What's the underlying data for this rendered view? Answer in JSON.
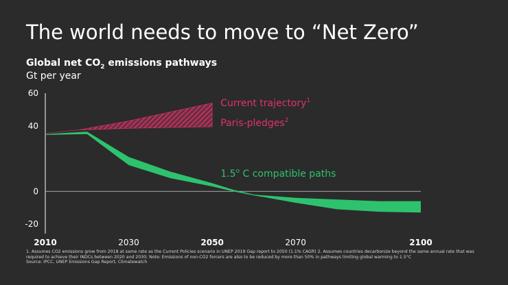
{
  "slide": {
    "title": "The world needs to move to “Net Zero”",
    "chart_title_pre": "Global net CO",
    "chart_title_sub": "2",
    "chart_title_post": " emissions pathways",
    "unit": "Gt per year"
  },
  "footnote": {
    "line1": "1. Assumes CO2 emissions grow from 2018 at same rate as the Current Policies scenario in UNEP 2019 Gap report to 2050 (1.1% CAGR) 2. Assumes countries decarbonize beyond  the same annual rate that was required to achieve their INDCs between  2020 and 2030; Note: Emissions of non-CO2 forcers are also to be reduced by more than 50% in pathways limiting global warming to 1.5°C",
    "line2": "Source: IPCC, UNEP Emissions Gap Report, Climatewatch"
  },
  "colors": {
    "background": "#2b2b2b",
    "current_trajectory": "#e0336b",
    "paris_pledges": "#e0336b",
    "compatible_paths": "#2ec26e",
    "axis": "#ffffff"
  },
  "chart_data": {
    "type": "area",
    "title": "Global net CO2 emissions pathways",
    "ylabel": "Gt per year",
    "xlim": [
      2010,
      2100
    ],
    "ylim": [
      -20,
      60
    ],
    "x_ticks": [
      {
        "value": 2010,
        "label": "2010",
        "bold": true
      },
      {
        "value": 2030,
        "label": "2030",
        "bold": false
      },
      {
        "value": 2050,
        "label": "2050",
        "bold": true
      },
      {
        "value": 2070,
        "label": "2070",
        "bold": false
      },
      {
        "value": 2100,
        "label": "2100",
        "bold": true
      }
    ],
    "y_ticks": [
      {
        "value": 60,
        "label": "60"
      },
      {
        "value": 40,
        "label": "40"
      },
      {
        "value": 0,
        "label": "0"
      },
      {
        "value": -20,
        "label": "-20"
      }
    ],
    "series": [
      {
        "name": "Current trajectory",
        "superscript": "1",
        "fill": "hatched",
        "upper": [
          [
            2010,
            35.5
          ],
          [
            2018,
            37.5
          ],
          [
            2030,
            43
          ],
          [
            2040,
            48.5
          ],
          [
            2050,
            54
          ]
        ],
        "lower": [
          [
            2010,
            35.5
          ],
          [
            2018,
            37.5
          ],
          [
            2030,
            38.5
          ],
          [
            2040,
            39
          ],
          [
            2050,
            39.5
          ]
        ]
      },
      {
        "name": "Paris-pledges",
        "superscript": "2",
        "fill": "hatched",
        "upper": [
          [
            2050,
            39.5
          ]
        ],
        "lower": [
          [
            2050,
            39.5
          ]
        ]
      },
      {
        "name": "1.5° C compatible paths",
        "fill": "solid",
        "upper": [
          [
            2010,
            35
          ],
          [
            2020,
            36.5
          ],
          [
            2030,
            21
          ],
          [
            2040,
            12
          ],
          [
            2050,
            5
          ],
          [
            2055,
            1
          ],
          [
            2060,
            -2
          ],
          [
            2070,
            -4
          ],
          [
            2080,
            -5
          ],
          [
            2090,
            -6
          ],
          [
            2100,
            -6
          ]
        ],
        "lower": [
          [
            2010,
            34.5
          ],
          [
            2020,
            35
          ],
          [
            2030,
            16
          ],
          [
            2040,
            8
          ],
          [
            2050,
            3
          ],
          [
            2055,
            0
          ],
          [
            2060,
            -2.5
          ],
          [
            2070,
            -7
          ],
          [
            2080,
            -11
          ],
          [
            2090,
            -12.5
          ],
          [
            2100,
            -13
          ]
        ]
      }
    ],
    "annotations": [
      {
        "label_key": "current",
        "text": "Current trajectory",
        "sup": "1",
        "x": 2052,
        "y": 52,
        "color": "#e0336b"
      },
      {
        "label_key": "paris",
        "text": "Paris-pledges",
        "sup": "2",
        "x": 2052,
        "y": 40,
        "color": "#e0336b"
      },
      {
        "label_key": "compatible",
        "text": "1.5",
        "sup": "o",
        "rest": " C compatible paths",
        "x": 2052,
        "y": 9,
        "color": "#2ec26e"
      }
    ]
  }
}
